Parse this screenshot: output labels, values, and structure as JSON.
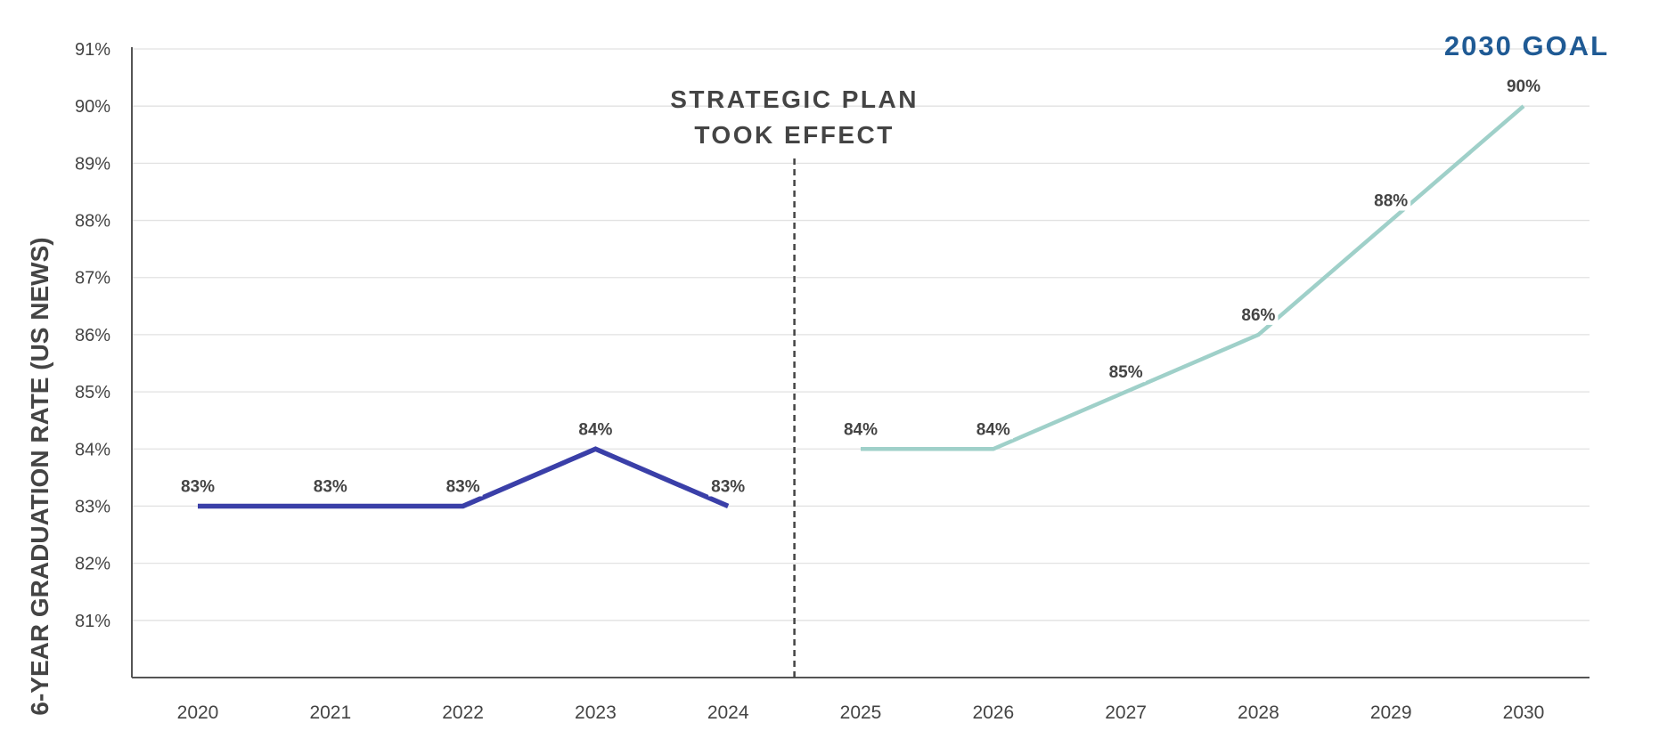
{
  "chart_data": {
    "type": "line",
    "title": "",
    "xlabel": "",
    "ylabel": "6-YEAR GRADUATION RATE (US NEWS)",
    "x": [
      "2020",
      "2021",
      "2022",
      "2023",
      "2024",
      "2025",
      "2026",
      "2027",
      "2028",
      "2029",
      "2030"
    ],
    "ylim": [
      80,
      91
    ],
    "yticks": [
      81,
      82,
      83,
      84,
      85,
      86,
      87,
      88,
      89,
      90,
      91
    ],
    "ytick_labels": [
      "81%",
      "82%",
      "83%",
      "84%",
      "85%",
      "86%",
      "87%",
      "88%",
      "89%",
      "90%",
      "91%"
    ],
    "grid": true,
    "series": [
      {
        "color": "#3a3fa8",
        "x": [
          "2020",
          "2021",
          "2022",
          "2023",
          "2024"
        ],
        "values": [
          83,
          83,
          83,
          84,
          83
        ],
        "labels": [
          "83%",
          "83%",
          "83%",
          "84%",
          "83%"
        ]
      },
      {
        "color": "#9fd0c9",
        "x": [
          "2025",
          "2026",
          "2027",
          "2028",
          "2029",
          "2030"
        ],
        "values": [
          84,
          84,
          85,
          86,
          88,
          90
        ],
        "labels": [
          "84%",
          "84%",
          "85%",
          "86%",
          "88%",
          "90%"
        ]
      }
    ],
    "annotations": {
      "plan_line": {
        "after_x": "2024",
        "text_line1": "STRATEGIC PLAN",
        "text_line2": "TOOK EFFECT"
      },
      "goal": {
        "text": "2030 GOAL",
        "color": "#1f5a94"
      }
    }
  }
}
